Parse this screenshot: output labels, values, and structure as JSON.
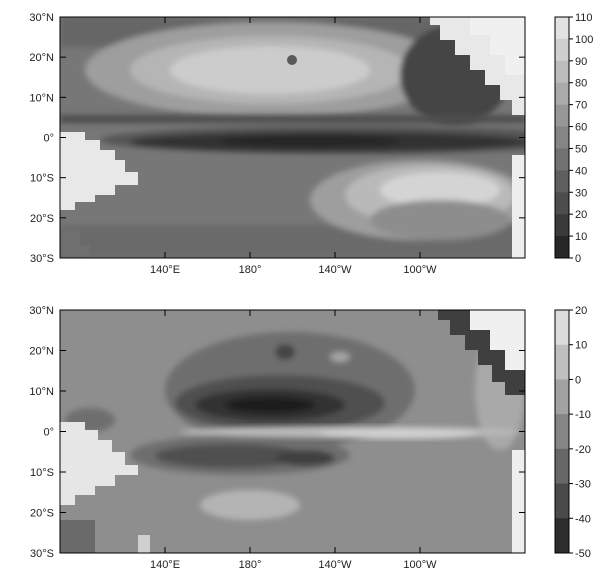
{
  "chart_data": [
    {
      "type": "heatmap",
      "title": "",
      "xlabel": "",
      "ylabel": "",
      "x_ticks": [
        "140°E",
        "180°",
        "140°W",
        "100°W"
      ],
      "y_ticks": [
        "30°N",
        "20°N",
        "10°N",
        "0°",
        "10°S",
        "20°S",
        "30°S"
      ],
      "colorbar": {
        "labels": [
          "110",
          "100",
          "90",
          "80",
          "70",
          "60",
          "50",
          "40",
          "30",
          "20",
          "10",
          "0"
        ],
        "range": [
          0,
          110
        ],
        "scale": "grayscale, dark = low, light = high"
      },
      "features": [
        {
          "region": "equatorial band 0°-2°N, 150°E-90°W",
          "value": 10
        },
        {
          "region": "north subtropics 15°N-25°N, 175°E-145°W",
          "value": 90
        },
        {
          "region": "south subtropics 8°S-18°S, 130°W-90°W",
          "value": 90
        },
        {
          "region": "northeast near coast 10°N-25°N, 110°W-95°W",
          "value": 20
        },
        {
          "region": "background",
          "value": 60
        }
      ]
    },
    {
      "type": "heatmap",
      "title": "",
      "xlabel": "",
      "ylabel": "",
      "x_ticks": [
        "140°E",
        "180°",
        "140°W",
        "100°W"
      ],
      "y_ticks": [
        "30°N",
        "20°N",
        "10°N",
        "0°",
        "10°S",
        "20°S",
        "30°S"
      ],
      "colorbar": {
        "labels": [
          "20",
          "10",
          "0",
          "-10",
          "-20",
          "-30",
          "-40",
          "-50"
        ],
        "range": [
          -50,
          20
        ],
        "scale": "grayscale, dark = low, light = high"
      },
      "features": [
        {
          "region": "core near 7°N, 160°W",
          "value": -50
        },
        {
          "region": "north band 3°N-12°N, 175°E-130°W",
          "value": -35
        },
        {
          "region": "south band 5°S-9°S, 170°E-140°W",
          "value": -25
        },
        {
          "region": "equatorial tongue 2°S-0°, 175°E-100°W",
          "value": 10
        },
        {
          "region": "south patch 18°S-24°S, 170°W-150°W",
          "value": 5
        },
        {
          "region": "background",
          "value": 0
        }
      ]
    }
  ]
}
